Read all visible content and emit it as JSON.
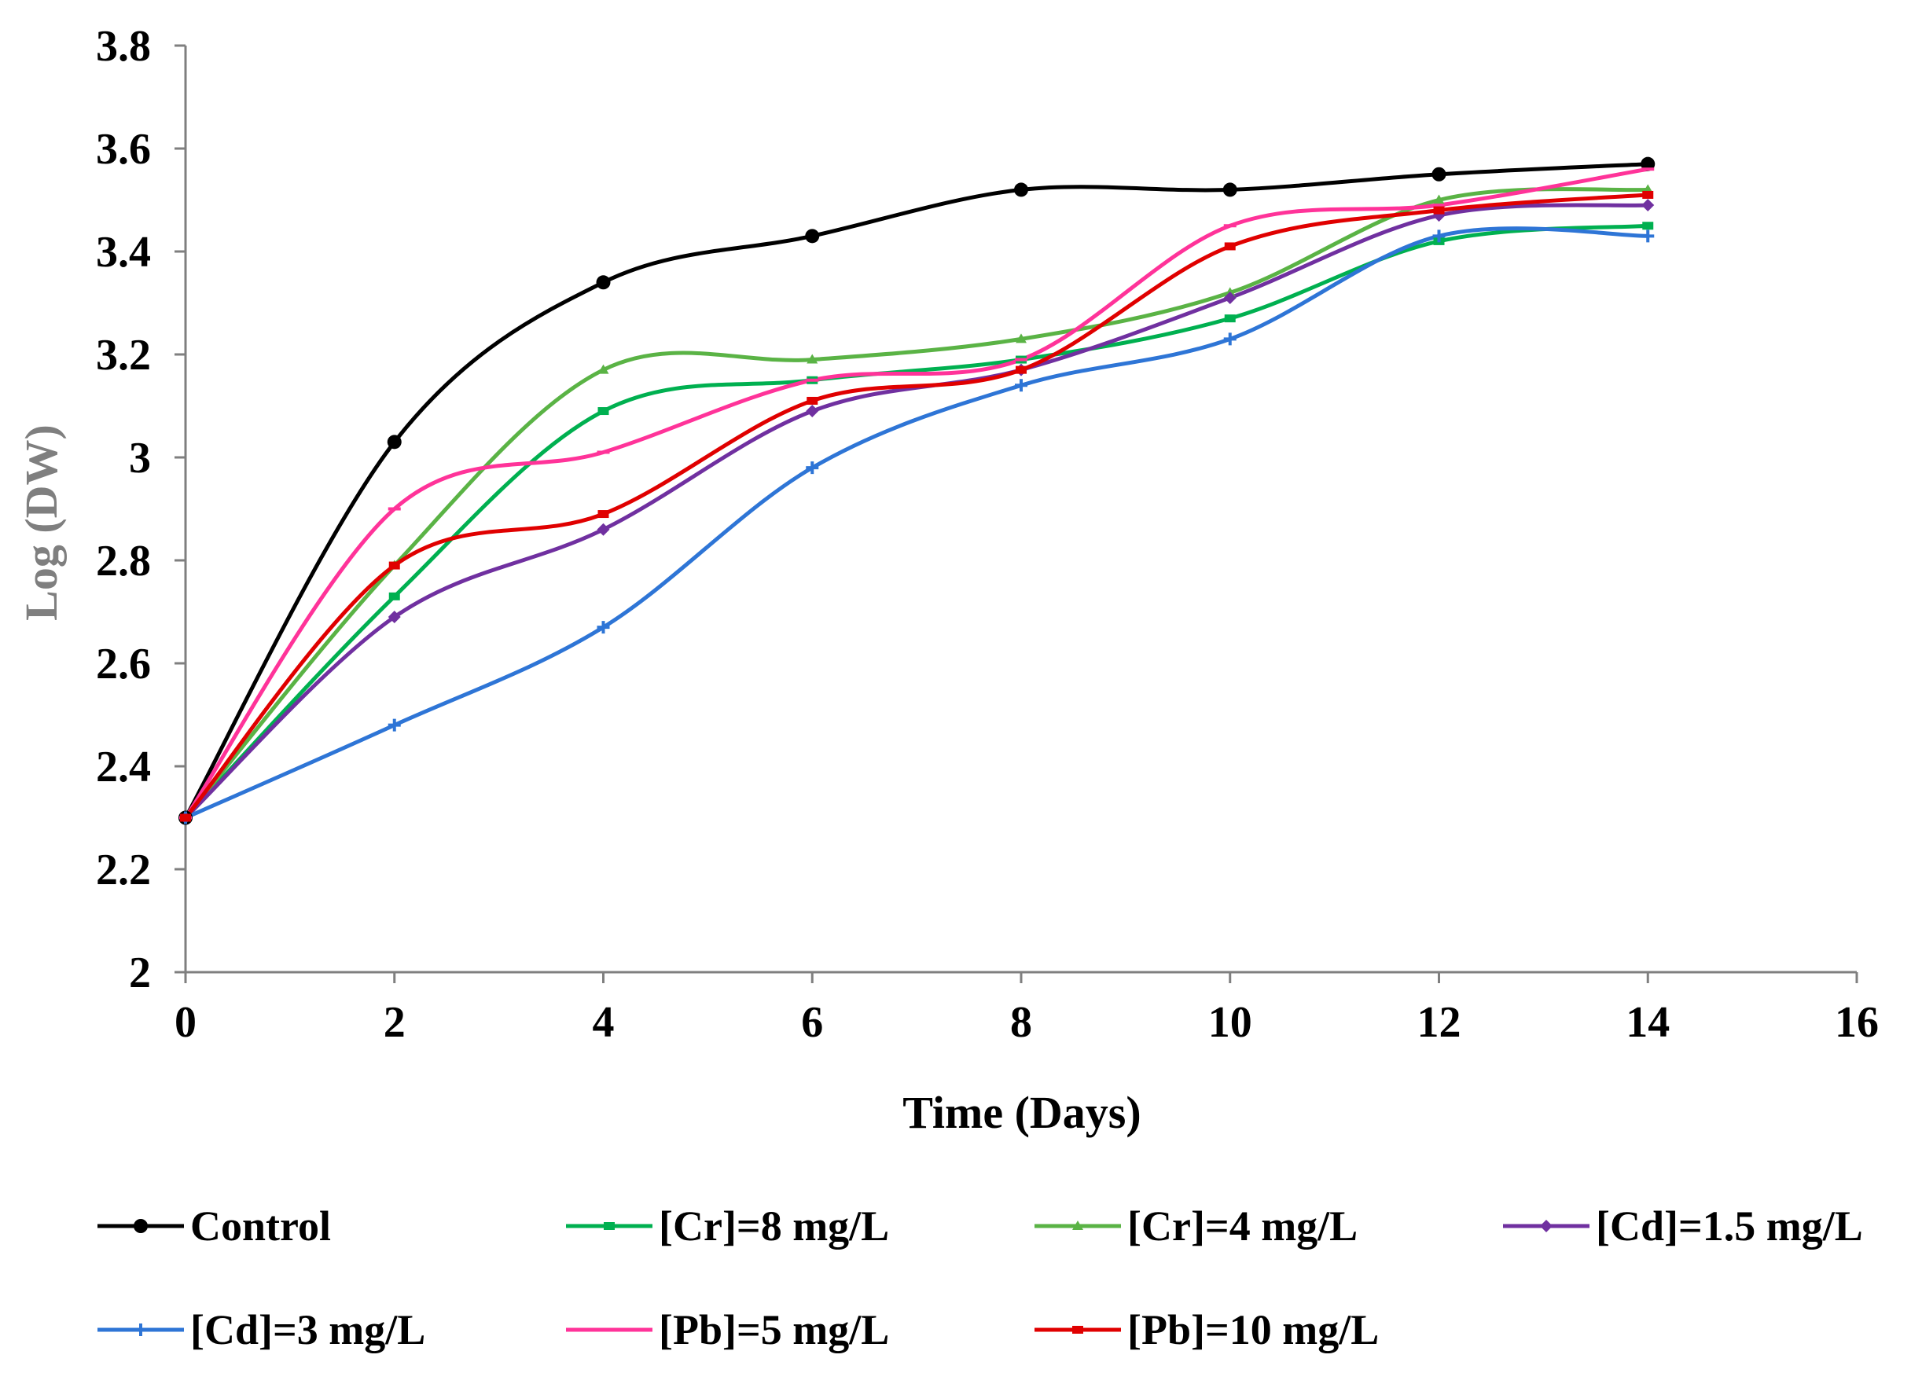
{
  "chart_data": {
    "type": "line",
    "title": "",
    "xlabel": "Time (Days)",
    "ylabel": "Log (DW)",
    "xlim": [
      0,
      16
    ],
    "ylim": [
      2,
      3.8
    ],
    "xticks": [
      0,
      2,
      4,
      6,
      8,
      10,
      12,
      14,
      16
    ],
    "yticks": [
      2,
      2.2,
      2.4,
      2.6,
      2.8,
      3,
      3.2,
      3.4,
      3.6,
      3.8
    ],
    "xtick_labels": [
      "0",
      "2",
      "4",
      "6",
      "8",
      "10",
      "12",
      "14",
      "16"
    ],
    "ytick_labels": [
      "2",
      "2.2",
      "2.4",
      "2.6",
      "2.8",
      "3",
      "3.2",
      "3.4",
      "3.6",
      "3.8"
    ],
    "grid": false,
    "legend_position": "bottom",
    "x": [
      0,
      2,
      4,
      6,
      8,
      10,
      12,
      14
    ],
    "series": [
      {
        "name": "Control",
        "color": "#000000",
        "marker": "circle",
        "values": [
          2.3,
          3.03,
          3.34,
          3.43,
          3.52,
          3.52,
          3.55,
          3.57
        ]
      },
      {
        "name": "[Cr]=8 mg/L",
        "color": "#00B050",
        "marker": "square",
        "values": [
          2.3,
          2.73,
          3.09,
          3.15,
          3.19,
          3.27,
          3.42,
          3.45
        ]
      },
      {
        "name": "[Cr]=4 mg/L",
        "color": "#5AB345",
        "marker": "triangle",
        "values": [
          2.3,
          2.79,
          3.17,
          3.19,
          3.23,
          3.32,
          3.5,
          3.52
        ]
      },
      {
        "name": "[Cd]=1.5 mg/L",
        "color": "#7030A0",
        "marker": "diamond",
        "values": [
          2.3,
          2.69,
          2.86,
          3.09,
          3.17,
          3.31,
          3.47,
          3.49
        ]
      },
      {
        "name": "[Cd]=3 mg/L",
        "color": "#2E75D6",
        "marker": "plus",
        "values": [
          2.3,
          2.48,
          2.67,
          2.98,
          3.14,
          3.23,
          3.43,
          3.43
        ]
      },
      {
        "name": "[Pb]=5 mg/L",
        "color": "#FF3399",
        "marker": "dash",
        "values": [
          2.3,
          2.9,
          3.01,
          3.15,
          3.19,
          3.45,
          3.49,
          3.56
        ]
      },
      {
        "name": "[Pb]=10 mg/L",
        "color": "#E00000",
        "marker": "square",
        "values": [
          2.3,
          2.79,
          2.89,
          3.11,
          3.17,
          3.41,
          3.48,
          3.51
        ]
      }
    ]
  }
}
